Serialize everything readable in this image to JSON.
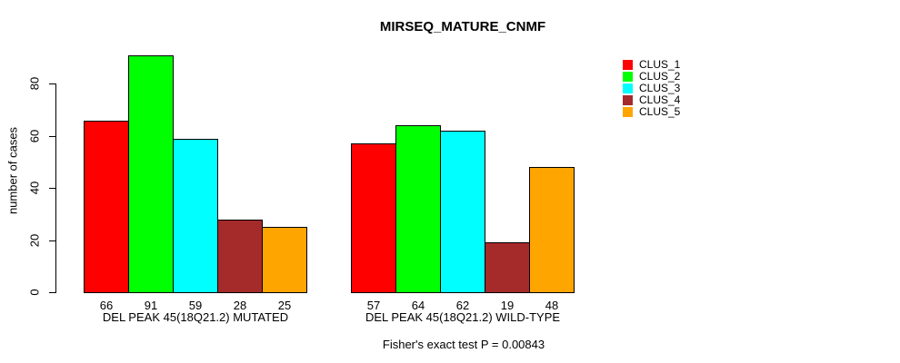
{
  "chart_data": {
    "type": "bar",
    "title": "MIRSEQ_MATURE_CNMF",
    "ylabel": "number of cases",
    "xlabel": "",
    "categories": [
      "DEL PEAK 45(18Q21.2) MUTATED",
      "DEL PEAK 45(18Q21.2) WILD-TYPE"
    ],
    "series": [
      {
        "name": "CLUS_1",
        "color": "#FF0000",
        "values": [
          66,
          57
        ]
      },
      {
        "name": "CLUS_2",
        "color": "#00FF00",
        "values": [
          91,
          64
        ]
      },
      {
        "name": "CLUS_3",
        "color": "#00FFFF",
        "values": [
          59,
          62
        ]
      },
      {
        "name": "CLUS_4",
        "color": "#A52A2A",
        "values": [
          28,
          19
        ]
      },
      {
        "name": "CLUS_5",
        "color": "#FFA500",
        "values": [
          25,
          48
        ]
      }
    ],
    "bar_value_labels": [
      [
        66,
        91,
        59,
        28,
        25
      ],
      [
        57,
        64,
        62,
        19,
        48
      ]
    ],
    "yticks": [
      0,
      20,
      40,
      60,
      80
    ],
    "ytick_labels": [
      "0",
      "20",
      "40",
      "60",
      "80"
    ],
    "ylim": [
      0,
      91
    ],
    "grid": false,
    "legend_position": "right",
    "annotation": "Fisher's exact test P = 0.00843"
  }
}
